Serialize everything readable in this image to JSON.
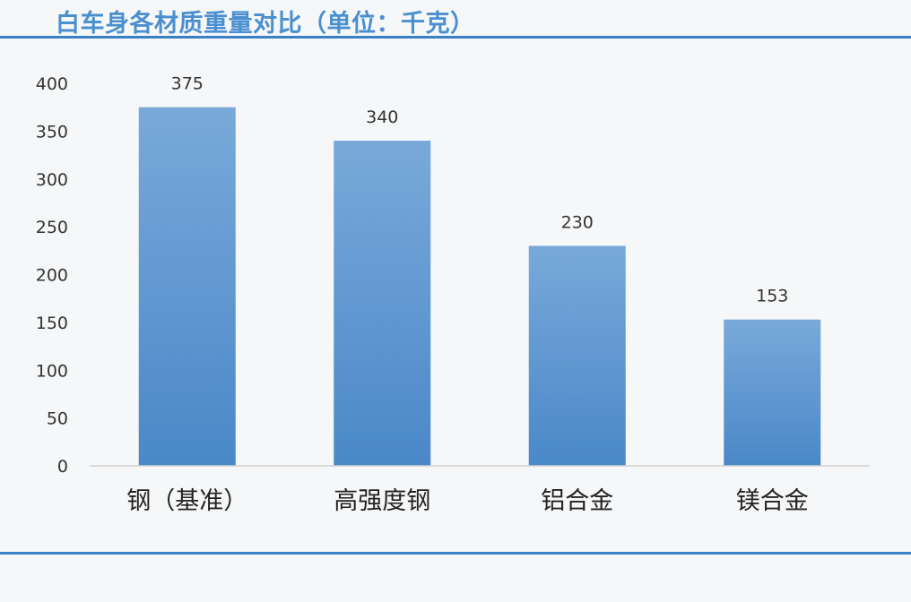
{
  "chart_data": {
    "type": "bar",
    "title": "白车身各材质重量对比（单位：千克）",
    "categories": [
      "钢（基准）",
      "高强度钢",
      "铝合金",
      "镁合金"
    ],
    "values": [
      375,
      340,
      230,
      153
    ],
    "data_labels": [
      "375",
      "340",
      "230",
      "153"
    ],
    "ylim": [
      0,
      400
    ],
    "yticks": [
      0,
      50,
      100,
      150,
      200,
      250,
      300,
      350,
      400
    ],
    "ytick_labels": [
      "0",
      "50",
      "100",
      "150",
      "200",
      "250",
      "300",
      "350",
      "400"
    ],
    "grid": false,
    "legend": "none",
    "bar_color_top": "#79a9da",
    "bar_color_bottom": "#4a88c8",
    "title_color": "#4a8fd0",
    "rule_color": "#3b7fc4"
  }
}
